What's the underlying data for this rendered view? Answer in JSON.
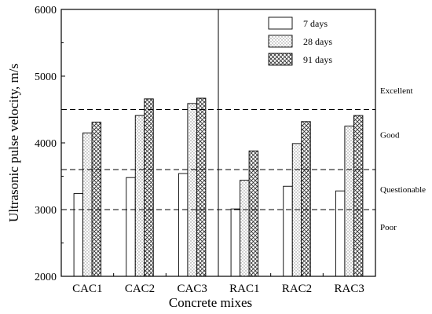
{
  "chart_data": {
    "type": "bar",
    "xlabel": "Concrete mixes",
    "ylabel": "Ultrasonic pulse velocity, m/s",
    "ylim": [
      2000,
      6000
    ],
    "yticks": [
      2000,
      3000,
      4000,
      5000,
      6000
    ],
    "grid": false,
    "legend_position": "top-right",
    "categories": [
      "CAC1",
      "CAC2",
      "CAC3",
      "RAC1",
      "RAC2",
      "RAC3"
    ],
    "series": [
      {
        "name": "7 days",
        "pattern": "plain",
        "values": [
          3240,
          3480,
          3540,
          3010,
          3350,
          3280
        ]
      },
      {
        "name": "28 days",
        "pattern": "dotted",
        "values": [
          4150,
          4410,
          4590,
          3440,
          3990,
          4250
        ]
      },
      {
        "name": "91 days",
        "pattern": "crosshatch",
        "values": [
          4310,
          4660,
          4670,
          3880,
          4320,
          4410
        ]
      }
    ],
    "reference_lines": [
      {
        "value": 4500,
        "style": "dashed"
      },
      {
        "value": 3600,
        "style": "dashed"
      },
      {
        "value": 3000,
        "style": "dashed"
      }
    ],
    "zone_labels": [
      {
        "text": "Excellent",
        "value": 4790
      },
      {
        "text": "Good",
        "value": 4125
      },
      {
        "text": "Questionable",
        "value": 3305
      },
      {
        "text": "Poor",
        "value": 2740
      }
    ],
    "group_divider_after_index": 2
  }
}
